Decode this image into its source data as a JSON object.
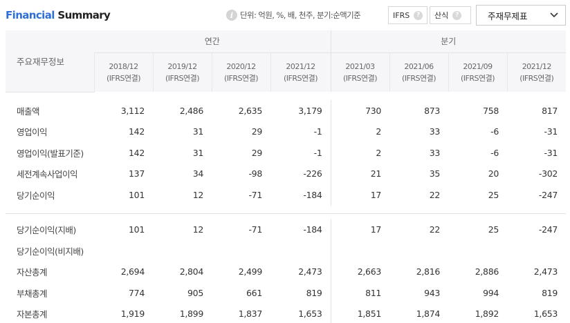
{
  "header": {
    "title_accent": "Financial",
    "title_rest": "Summary",
    "unit_text": "단위: 억원, %, 배, 천주, 분기:순액기준",
    "ifrs_label": "IFRS",
    "calc_label": "산식",
    "help_mark": "?",
    "select_value": "주재무제표",
    "chevron": "⌄"
  },
  "table": {
    "row_header": "주요재무정보",
    "groups": {
      "annual": "연간",
      "quarter": "분기"
    },
    "periods": [
      {
        "date": "2018/12",
        "basis": "(IFRS연결)"
      },
      {
        "date": "2019/12",
        "basis": "(IFRS연결)"
      },
      {
        "date": "2020/12",
        "basis": "(IFRS연결)"
      },
      {
        "date": "2021/12",
        "basis": "(IFRS연결)"
      },
      {
        "date": "2021/03",
        "basis": "(IFRS연결)"
      },
      {
        "date": "2021/06",
        "basis": "(IFRS연결)"
      },
      {
        "date": "2021/09",
        "basis": "(IFRS연결)"
      },
      {
        "date": "2021/12",
        "basis": "(IFRS연결)"
      }
    ],
    "section1": [
      {
        "label": "매출액",
        "values": [
          "3,112",
          "2,486",
          "2,635",
          "3,179",
          "730",
          "873",
          "758",
          "817"
        ]
      },
      {
        "label": "영업이익",
        "values": [
          "142",
          "31",
          "29",
          "-1",
          "2",
          "33",
          "-6",
          "-31"
        ]
      },
      {
        "label": "영업이익(발표기준)",
        "values": [
          "142",
          "31",
          "29",
          "-1",
          "2",
          "33",
          "-6",
          "-31"
        ]
      },
      {
        "label": "세전계속사업이익",
        "values": [
          "137",
          "34",
          "-98",
          "-226",
          "21",
          "35",
          "20",
          "-302"
        ]
      },
      {
        "label": "당기순이익",
        "values": [
          "101",
          "12",
          "-71",
          "-184",
          "17",
          "22",
          "25",
          "-247"
        ]
      }
    ],
    "section2": [
      {
        "label": "당기순이익(지배)",
        "values": [
          "101",
          "12",
          "-71",
          "-184",
          "17",
          "22",
          "25",
          "-247"
        ]
      },
      {
        "label": "당기순이익(비지배)",
        "values": [
          "",
          "",
          "",
          "",
          "",
          "",
          "",
          ""
        ]
      },
      {
        "label": "자산총계",
        "values": [
          "2,694",
          "2,804",
          "2,499",
          "2,473",
          "2,663",
          "2,816",
          "2,886",
          "2,473"
        ]
      },
      {
        "label": "부채총계",
        "values": [
          "774",
          "905",
          "661",
          "819",
          "811",
          "943",
          "994",
          "819"
        ]
      },
      {
        "label": "자본총계",
        "values": [
          "1,919",
          "1,899",
          "1,837",
          "1,653",
          "1,851",
          "1,874",
          "1,892",
          "1,653"
        ]
      }
    ]
  },
  "colors": {
    "accent": "#2f6fd6",
    "negative": "#e0383e",
    "header_bg": "#f6f6f8"
  }
}
